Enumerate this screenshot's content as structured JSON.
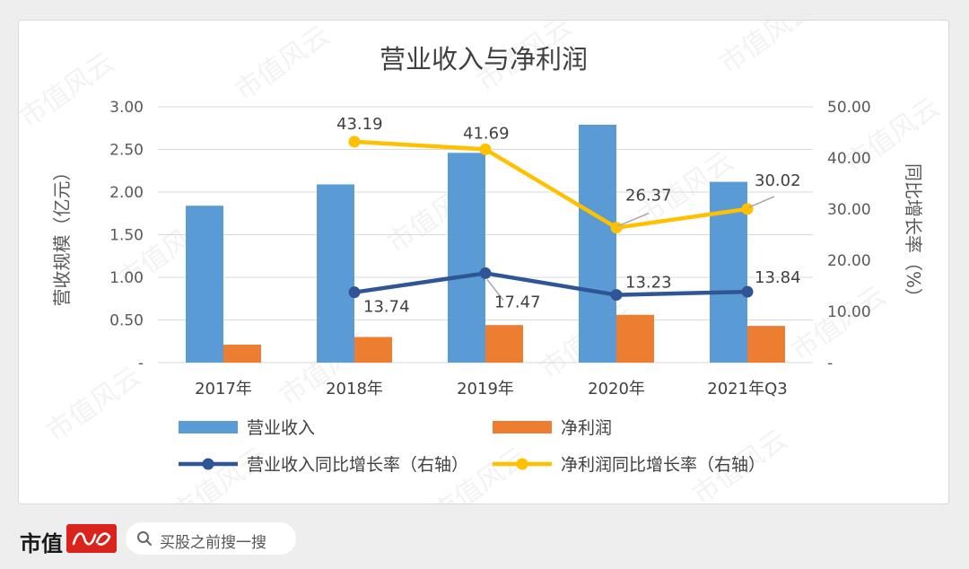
{
  "chart_data": {
    "type": "bar+line",
    "title": "营业收入与净利润",
    "categories": [
      "2017年",
      "2018年",
      "2019年",
      "2020年",
      "2021年Q3"
    ],
    "ylabel_left": "营收规模（亿元）",
    "ylabel_right": "同比增长率（%）",
    "ylim_left": [
      0,
      3
    ],
    "ylim_right": [
      0,
      50
    ],
    "yticks_left": [
      "-",
      "0.50",
      "1.00",
      "1.50",
      "2.00",
      "2.50",
      "3.00"
    ],
    "yticks_right": [
      "-",
      "10.00",
      "20.00",
      "30.00",
      "40.00",
      "50.00"
    ],
    "grid": true,
    "legend_position": "bottom",
    "bars": [
      {
        "name": "营业收入",
        "color": "#5b9bd5",
        "values": [
          1.84,
          2.09,
          2.46,
          2.79,
          2.12
        ]
      },
      {
        "name": "净利润",
        "color": "#ed7d31",
        "values": [
          0.21,
          0.3,
          0.44,
          0.56,
          0.43
        ]
      }
    ],
    "lines": [
      {
        "name": "营业收入同比增长率（右轴）",
        "color": "#2f5597",
        "values": [
          null,
          13.74,
          17.47,
          13.23,
          13.84
        ],
        "labels": [
          "",
          "13.74",
          "17.47",
          "13.23",
          "13.84"
        ]
      },
      {
        "name": "净利润同比增长率（右轴）",
        "color": "#ffc000",
        "values": [
          null,
          43.19,
          41.69,
          26.37,
          30.02
        ],
        "labels": [
          "",
          "43.19",
          "41.69",
          "26.37",
          "30.02"
        ]
      }
    ]
  },
  "footer": {
    "brand": "市值",
    "search_label": "买股之前搜一搜"
  },
  "watermark": "市值风云"
}
